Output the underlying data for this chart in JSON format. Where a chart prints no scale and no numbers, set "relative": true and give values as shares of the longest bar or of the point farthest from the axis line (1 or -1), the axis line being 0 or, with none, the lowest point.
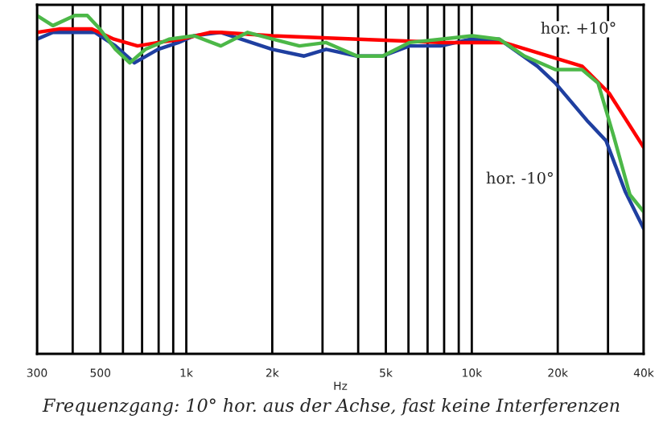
{
  "chart_data": {
    "type": "line",
    "relative": true,
    "xlabel": "Hz",
    "log": "x",
    "xlim": [
      300,
      40000
    ],
    "xticks": [
      300,
      {
        "value": 400,
        "label": null
      },
      500,
      {
        "value": 600,
        "label": null
      },
      {
        "value": 700,
        "label": null
      },
      {
        "value": 800,
        "label": null
      },
      {
        "value": 900,
        "label": null
      },
      {
        "value": 1000,
        "label": "1k"
      },
      {
        "value": 2000,
        "label": "2k"
      },
      {
        "value": 3000,
        "label": null
      },
      {
        "value": 4000,
        "label": null
      },
      {
        "value": 5000,
        "label": "5k"
      },
      {
        "value": 6000,
        "label": null
      },
      {
        "value": 7000,
        "label": null
      },
      {
        "value": 8000,
        "label": null
      },
      {
        "value": 9000,
        "label": null
      },
      {
        "value": 10000,
        "label": "10k"
      },
      {
        "value": 20000,
        "label": "20k"
      },
      {
        "value": 30000,
        "label": null
      },
      {
        "value": 40000,
        "label": "40k"
      }
    ],
    "tick_labels": "x",
    "grid": "x",
    "line_style": "solid",
    "series": [
      {
        "color": "#1f3fa0",
        "x": [
          300,
          341,
          479,
          565,
          658,
          796,
          939,
          1065,
          1321,
          2000,
          2586,
          3090,
          3970,
          4872,
          6046,
          7800,
          9910,
          12480,
          16980,
          19620,
          25300,
          29520,
          34450,
          40000
        ],
        "values": [
          0.93,
          0.95,
          0.95,
          0.91,
          0.86,
          0.9,
          0.92,
          0.94,
          0.95,
          0.9,
          0.88,
          0.9,
          0.88,
          0.88,
          0.91,
          0.91,
          0.93,
          0.93,
          0.85,
          0.8,
          0.69,
          0.63,
          0.48,
          0.37
        ]
      },
      {
        "color": "#ff0000",
        "x": [
          300,
          358,
          467,
          558,
          675,
          796,
          963,
          1209,
          1321,
          2000,
          4000,
          8000,
          12960,
          24340,
          30290,
          40000
        ],
        "values": [
          0.95,
          0.96,
          0.96,
          0.93,
          0.91,
          0.92,
          0.93,
          0.95,
          0.95,
          0.94,
          0.93,
          0.92,
          0.92,
          0.85,
          0.77,
          0.61
        ]
      },
      {
        "color": "#4cb848",
        "x": [
          300,
          341,
          407,
          450,
          498,
          565,
          634,
          719,
          870,
          1065,
          1321,
          1640,
          2009,
          2490,
          3090,
          3970,
          4872,
          6046,
          7800,
          10040,
          12480,
          15300,
          19620,
          24340,
          27690,
          31480,
          35800,
          40000
        ],
        "values": [
          1.0,
          0.97,
          1.0,
          1.0,
          0.96,
          0.9,
          0.86,
          0.9,
          0.93,
          0.94,
          0.91,
          0.95,
          0.93,
          0.91,
          0.92,
          0.88,
          0.88,
          0.92,
          0.93,
          0.94,
          0.93,
          0.88,
          0.84,
          0.84,
          0.8,
          0.64,
          0.47,
          0.42
        ]
      }
    ],
    "annotations": [
      "hor. +10°",
      "hor. -10°",
      "Frequenzgang: 10° hor. aus der Achse, fast keine Interferenzen"
    ]
  }
}
